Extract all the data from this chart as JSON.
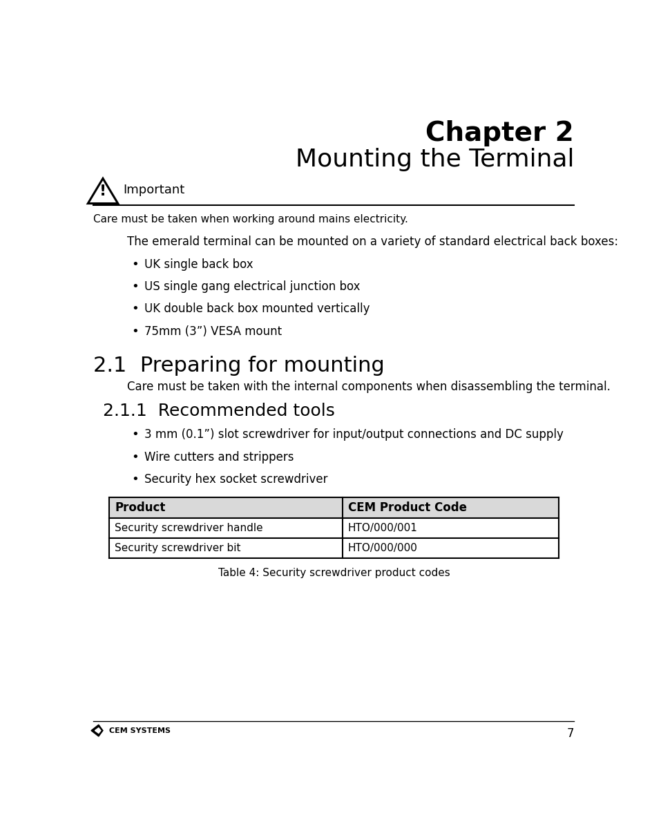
{
  "chapter_number": "Chapter 2",
  "chapter_title": "Mounting the Terminal",
  "warning_title": "Important",
  "warning_text": "Care must be taken when working around mains electricity.",
  "intro_text": "The emerald terminal can be mounted on a variety of standard electrical back boxes:",
  "bullet_points": [
    "UK single back box",
    "US single gang electrical junction box",
    "UK double back box mounted vertically",
    "75mm (3”) VESA mount"
  ],
  "section_21_title": "2.1  Preparing for mounting",
  "section_21_text": "Care must be taken with the internal components when disassembling the terminal.",
  "section_211_title": "2.1.1  Recommended tools",
  "tools_bullets": [
    "3 mm (0.1”) slot screwdriver for input/output connections and DC supply",
    "Wire cutters and strippers",
    "Security hex socket screwdriver"
  ],
  "table_headers": [
    "Product",
    "CEM Product Code"
  ],
  "table_rows": [
    [
      "Security screwdriver handle",
      "HTO/000/001"
    ],
    [
      "Security screwdriver bit",
      "HTO/000/000"
    ]
  ],
  "table_caption": "Table 4: Security screwdriver product codes",
  "page_number": "7",
  "footer_text": "CEM SYSTEMS",
  "bg_color": "#ffffff",
  "text_color": "#000000",
  "header_bg": "#d9d9d9",
  "table_border_color": "#000000",
  "line_color": "#000000"
}
